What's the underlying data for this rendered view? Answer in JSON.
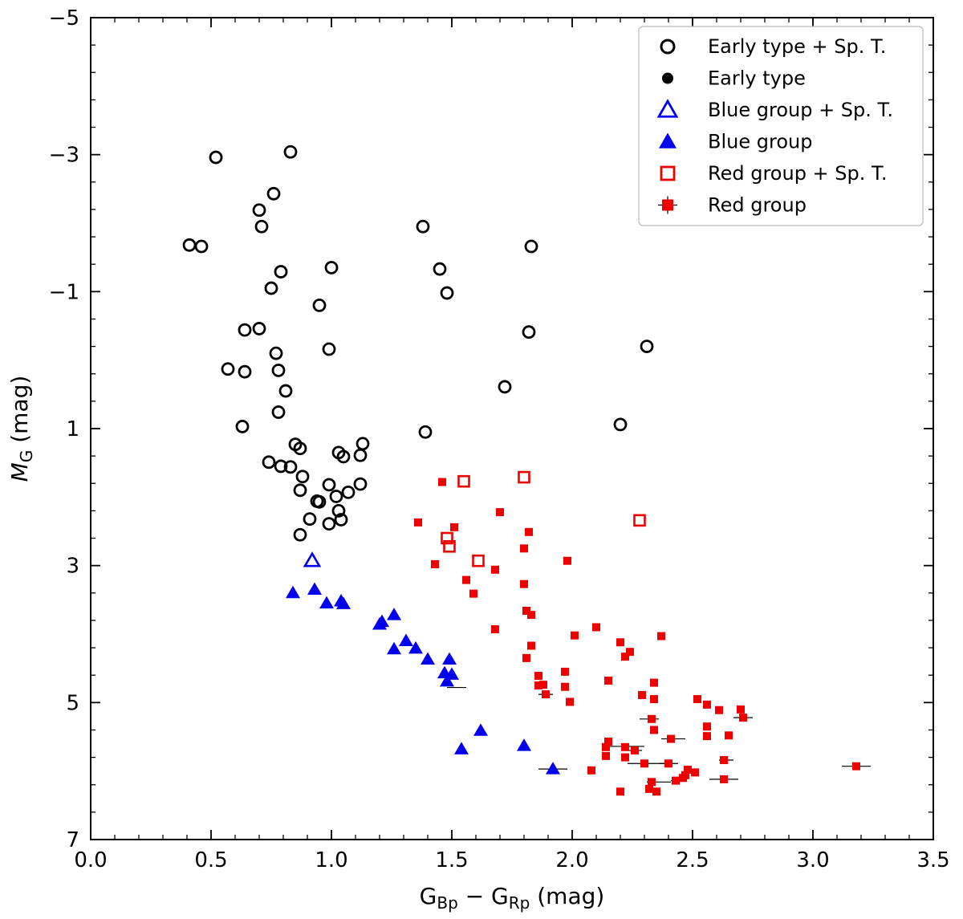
{
  "chart_data": {
    "type": "scatter",
    "title": "",
    "xlabel": "G",
    "xlabel_sub_1": "Bp",
    "xlabel_mid": " − G",
    "xlabel_sub_2": "Rp",
    "xlabel_unit": " (mag)",
    "ylabel_main": "M",
    "ylabel_sub": "G",
    "ylabel_unit": " (mag)",
    "xlim": [
      0.0,
      3.5
    ],
    "ylim": [
      7,
      -5
    ],
    "xticks": [
      "0.0",
      "0.5",
      "1.0",
      "1.5",
      "2.0",
      "2.5",
      "3.0",
      "3.5"
    ],
    "yticks": [
      "−5",
      "−3",
      "−1",
      "1",
      "3",
      "5",
      "7"
    ],
    "grid": false,
    "legend_position": "top-right",
    "series": [
      {
        "name": "Early type + Sp. T.",
        "marker": "circle-open",
        "color": "#000000",
        "points": [
          [
            0.52,
            -2.96
          ],
          [
            0.83,
            -3.04
          ],
          [
            0.76,
            -2.43
          ],
          [
            0.7,
            -2.19
          ],
          [
            0.71,
            -1.95
          ],
          [
            0.41,
            -1.68
          ],
          [
            0.46,
            -1.66
          ],
          [
            1.38,
            -1.95
          ],
          [
            1.83,
            -1.66
          ],
          [
            0.79,
            -1.29
          ],
          [
            1.0,
            -1.35
          ],
          [
            1.45,
            -1.33
          ],
          [
            0.75,
            -1.05
          ],
          [
            1.48,
            -0.98
          ],
          [
            0.95,
            -0.8
          ],
          [
            0.64,
            -0.44
          ],
          [
            0.7,
            -0.46
          ],
          [
            1.82,
            -0.41
          ],
          [
            2.31,
            -0.2
          ],
          [
            0.77,
            -0.1
          ],
          [
            0.99,
            -0.16
          ],
          [
            0.57,
            0.13
          ],
          [
            0.64,
            0.17
          ],
          [
            0.78,
            0.15
          ],
          [
            0.81,
            0.45
          ],
          [
            1.72,
            0.39
          ],
          [
            0.78,
            0.76
          ],
          [
            0.63,
            0.97
          ],
          [
            2.2,
            0.94
          ],
          [
            1.39,
            1.05
          ],
          [
            0.85,
            1.23
          ],
          [
            0.87,
            1.29
          ],
          [
            1.13,
            1.22
          ],
          [
            1.03,
            1.35
          ],
          [
            1.05,
            1.41
          ],
          [
            1.12,
            1.39
          ],
          [
            0.74,
            1.49
          ],
          [
            0.79,
            1.55
          ],
          [
            0.83,
            1.56
          ],
          [
            0.88,
            1.7
          ],
          [
            1.12,
            1.81
          ],
          [
            0.99,
            1.82
          ],
          [
            1.07,
            1.93
          ],
          [
            0.87,
            1.9
          ],
          [
            1.02,
            1.99
          ],
          [
            0.95,
            2.07
          ],
          [
            0.94,
            2.06
          ],
          [
            1.03,
            2.2
          ],
          [
            1.04,
            2.33
          ],
          [
            0.91,
            2.32
          ],
          [
            0.99,
            2.39
          ],
          [
            0.87,
            2.55
          ]
        ]
      },
      {
        "name": "Early type",
        "marker": "circle-filled",
        "color": "#000000",
        "points": []
      },
      {
        "name": "Blue group + Sp. T.",
        "marker": "triangle-open",
        "color": "#0000ee",
        "points": [
          [
            0.92,
            2.93
          ]
        ]
      },
      {
        "name": "Blue group",
        "marker": "triangle-filled",
        "color": "#0000ee",
        "points": [
          [
            0.84,
            3.4
          ],
          [
            0.93,
            3.35
          ],
          [
            0.98,
            3.55
          ],
          [
            1.04,
            3.52
          ],
          [
            1.05,
            3.56
          ],
          [
            1.2,
            3.86
          ],
          [
            1.21,
            3.82
          ],
          [
            1.26,
            3.72
          ],
          [
            1.26,
            4.22
          ],
          [
            1.31,
            4.1
          ],
          [
            1.35,
            4.21
          ],
          [
            1.4,
            4.37
          ],
          [
            1.47,
            4.57
          ],
          [
            1.48,
            4.69
          ],
          [
            1.5,
            4.59
          ],
          [
            1.49,
            4.37
          ],
          [
            1.54,
            5.68
          ],
          [
            1.62,
            5.41
          ],
          [
            1.8,
            5.63
          ],
          [
            1.92,
            5.97
          ]
        ]
      },
      {
        "name": "Red group + Sp. T.",
        "marker": "square-open",
        "color": "#ee0000",
        "points": [
          [
            1.55,
            1.77
          ],
          [
            1.8,
            1.71
          ],
          [
            2.28,
            2.34
          ],
          [
            1.49,
            2.72
          ],
          [
            1.48,
            2.6
          ],
          [
            1.61,
            2.93
          ]
        ]
      },
      {
        "name": "Red group",
        "marker": "square-filled",
        "color": "#ee0000",
        "points": [
          [
            1.46,
            1.78
          ],
          [
            1.36,
            2.37
          ],
          [
            1.7,
            2.22
          ],
          [
            1.51,
            2.44
          ],
          [
            1.82,
            2.51
          ],
          [
            1.8,
            2.75
          ],
          [
            1.43,
            2.98
          ],
          [
            1.68,
            3.06
          ],
          [
            1.56,
            3.21
          ],
          [
            1.59,
            3.41
          ],
          [
            1.8,
            3.27
          ],
          [
            1.98,
            2.93
          ],
          [
            1.81,
            3.66
          ],
          [
            1.83,
            3.72
          ],
          [
            1.68,
            3.93
          ],
          [
            2.1,
            3.9
          ],
          [
            2.01,
            4.02
          ],
          [
            2.37,
            4.03
          ],
          [
            2.2,
            4.12
          ],
          [
            1.83,
            4.17
          ],
          [
            2.24,
            4.26
          ],
          [
            2.22,
            4.33
          ],
          [
            1.81,
            4.35
          ],
          [
            1.86,
            4.61
          ],
          [
            1.97,
            4.55
          ],
          [
            2.15,
            4.68
          ],
          [
            2.34,
            4.71
          ],
          [
            1.86,
            4.75
          ],
          [
            1.88,
            4.74
          ],
          [
            1.97,
            4.77
          ],
          [
            1.89,
            4.88
          ],
          [
            2.29,
            4.89
          ],
          [
            2.34,
            4.95
          ],
          [
            2.52,
            4.95
          ],
          [
            1.99,
            4.99
          ],
          [
            2.56,
            5.03
          ],
          [
            2.61,
            5.11
          ],
          [
            2.7,
            5.1
          ],
          [
            2.71,
            5.22
          ],
          [
            2.33,
            5.24
          ],
          [
            2.56,
            5.35
          ],
          [
            2.34,
            5.4
          ],
          [
            2.56,
            5.49
          ],
          [
            2.65,
            5.48
          ],
          [
            2.41,
            5.53
          ],
          [
            2.15,
            5.57
          ],
          [
            2.14,
            5.65
          ],
          [
            2.22,
            5.65
          ],
          [
            2.26,
            5.7
          ],
          [
            2.14,
            5.78
          ],
          [
            2.22,
            5.8
          ],
          [
            2.3,
            5.89
          ],
          [
            2.4,
            5.89
          ],
          [
            2.63,
            5.84
          ],
          [
            3.18,
            5.93
          ],
          [
            2.08,
            5.99
          ],
          [
            2.48,
            5.98
          ],
          [
            2.51,
            6.02
          ],
          [
            2.47,
            6.06
          ],
          [
            2.46,
            6.1
          ],
          [
            2.43,
            6.14
          ],
          [
            2.33,
            6.16
          ],
          [
            2.63,
            6.12
          ],
          [
            2.32,
            6.26
          ],
          [
            2.35,
            6.3
          ],
          [
            2.2,
            6.3
          ]
        ]
      }
    ],
    "error_bars_x": [
      [
        1.52,
        4.78,
        0.04
      ],
      [
        1.89,
        4.88,
        0.03
      ],
      [
        2.22,
        5.64,
        0.08
      ],
      [
        2.31,
        5.89,
        0.08
      ],
      [
        2.42,
        5.53,
        0.05
      ],
      [
        2.36,
        6.16,
        0.05
      ],
      [
        2.64,
        5.84,
        0.03
      ],
      [
        2.63,
        6.12,
        0.06
      ],
      [
        2.71,
        5.22,
        0.04
      ],
      [
        3.18,
        5.93,
        0.06
      ],
      [
        1.92,
        5.97,
        0.06
      ],
      [
        2.4,
        5.89,
        0.04
      ],
      [
        2.32,
        5.24,
        0.04
      ],
      [
        2.44,
        6.14,
        0.03
      ],
      [
        2.26,
        5.7,
        0.03
      ]
    ]
  }
}
